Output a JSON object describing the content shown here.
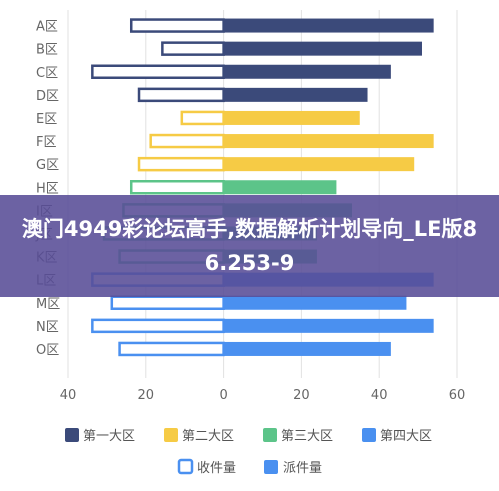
{
  "overlay_title": "澳门4949彩论坛高手,数据解析计划导向_LE版86.253-9",
  "colors": {
    "series_1": "#3b4a7a",
    "series_2": "#f6cb45",
    "series_3": "#5cc489",
    "series_4": "#4a90f0",
    "received_outline_area1": "#3b4a7a",
    "received_outline_area2": "#f6cb45",
    "received_outline_area4": "#4a90f0",
    "legend_received_outline": "#4a90f0",
    "legend_dispatched_fill": "#4a90f0"
  },
  "chart_data": {
    "type": "bar",
    "orientation": "horizontal",
    "categories": [
      "A区",
      "B区",
      "C区",
      "D区",
      "E区",
      "F区",
      "G区",
      "H区",
      "I区",
      "J区",
      "K区",
      "L区",
      "M区",
      "N区",
      "O区"
    ],
    "region_series": [
      "第一大区",
      "第一大区",
      "第一大区",
      "第一大区",
      "第二大区",
      "第二大区",
      "第二大区",
      "第三大区",
      "第三大区",
      "第三大区",
      "第三大区",
      "第四大区",
      "第四大区",
      "第四大区",
      "第四大区"
    ],
    "series": [
      {
        "name": "收件量",
        "values": [
          -24,
          -16,
          -34,
          -22,
          -11,
          -19,
          -22,
          -24,
          -26,
          -31,
          -27,
          -34,
          -29,
          -34,
          -27
        ]
      },
      {
        "name": "派件量",
        "values": [
          54,
          51,
          43,
          37,
          35,
          54,
          49,
          29,
          33,
          24,
          24,
          54,
          47,
          54,
          43
        ]
      }
    ],
    "xlim": [
      -40,
      60
    ],
    "xticks": [
      "40",
      "20",
      "0",
      "20",
      "40",
      "60"
    ],
    "legend": {
      "regions": [
        "第一大区",
        "第二大区",
        "第三大区",
        "第四大区"
      ],
      "types": [
        "收件量",
        "派件量"
      ],
      "position": "bottom"
    }
  }
}
